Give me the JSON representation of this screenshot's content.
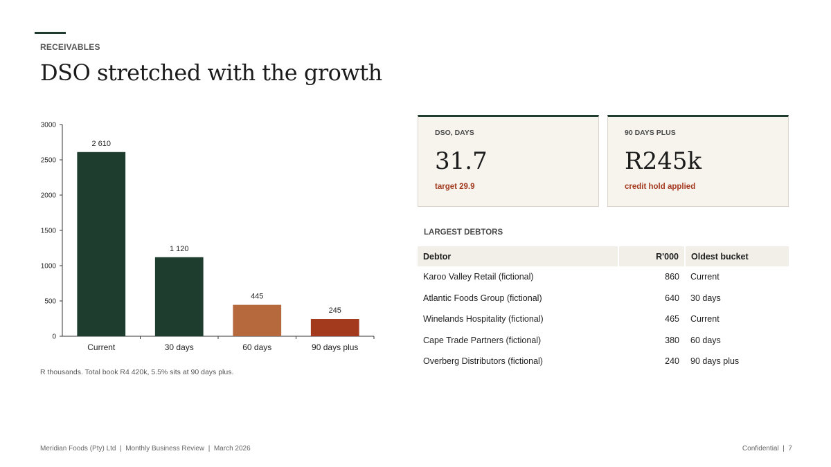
{
  "header": {
    "eyebrow": "RECEIVABLES",
    "title": "DSO stretched with the growth"
  },
  "chart_data": {
    "type": "bar",
    "categories": [
      "Current",
      "30 days",
      "60 days",
      "90 days plus"
    ],
    "values": [
      2610,
      1120,
      445,
      245
    ],
    "data_labels": [
      "2 610",
      "1 120",
      "445",
      "245"
    ],
    "bar_colors": [
      "#1f3d2e",
      "#1f3d2e",
      "#b5693d",
      "#a33a1e"
    ],
    "ylim": [
      0,
      3000
    ],
    "yticks": [
      0,
      500,
      1000,
      1500,
      2000,
      2500,
      3000
    ],
    "title": "",
    "xlabel": "",
    "ylabel": "",
    "grid": false,
    "note": "R thousands. Total book R4 420k, 5.5% sits at 90 days plus."
  },
  "kpis": [
    {
      "label": "DSO, DAYS",
      "value": "31.7",
      "sub": "target 29.9"
    },
    {
      "label": "90 DAYS PLUS",
      "value": "R245k",
      "sub": "credit hold applied"
    }
  ],
  "debtors": {
    "section_label": "LARGEST DEBTORS",
    "headers": [
      "Debtor",
      "R'000",
      "Oldest bucket"
    ],
    "rows": [
      {
        "name": "Karoo Valley Retail (fictional)",
        "amount": "860",
        "bucket": "Current"
      },
      {
        "name": "Atlantic Foods Group (fictional)",
        "amount": "640",
        "bucket": "30 days"
      },
      {
        "name": "Winelands Hospitality (fictional)",
        "amount": "465",
        "bucket": "Current"
      },
      {
        "name": "Cape Trade Partners (fictional)",
        "amount": "380",
        "bucket": "60 days"
      },
      {
        "name": "Overberg Distributors (fictional)",
        "amount": "240",
        "bucket": "90 days plus"
      }
    ]
  },
  "footer": {
    "left": "Meridian Foods (Pty) Ltd  |  Monthly Business Review  |  March 2026",
    "right": "Confidential  |  7"
  },
  "colors": {
    "accent": "#1f3d2e",
    "alert": "#a33a1e",
    "card_bg": "#f7f4ee"
  }
}
